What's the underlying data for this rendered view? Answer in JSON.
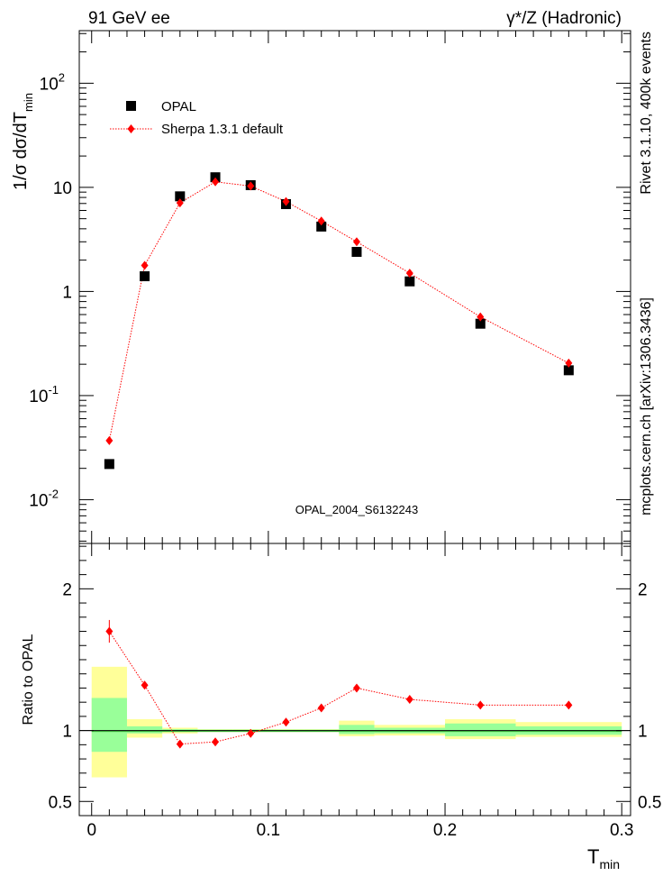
{
  "header": {
    "left": "91 GeV ee",
    "right": "γ*/Z (Hadronic)"
  },
  "side_labels": {
    "rivet": "Rivet 3.1.10,  400k events",
    "source": "mcplots.cern.ch [arXiv:1306.3436]"
  },
  "analysis_id": "OPAL_2004_S6132243",
  "colors": {
    "mc": "#ff0000",
    "data": "#000000",
    "band_inner": "#99ff99",
    "band_outer": "#ffff99",
    "ref_line": "#33aa33",
    "analysis_text": "#999999",
    "side_text": "#666666"
  },
  "chart_data": [
    {
      "type": "scatter",
      "title": "",
      "ylabel": "1/σ dσ/dT",
      "ylabel_sub": "min",
      "yscale": "log",
      "xlim": [
        -0.007,
        0.305
      ],
      "ylim": [
        0.0038,
        320
      ],
      "ytick_values": [
        0.01,
        0.1,
        1,
        10,
        100
      ],
      "ytick_mantissas": [
        "10",
        "10",
        "1",
        "10",
        "10"
      ],
      "ytick_exponents": [
        "-2",
        "-1",
        "",
        "",
        "2"
      ],
      "legend": {
        "position": "top-left",
        "entries": [
          "OPAL",
          "Sherpa 1.3.1 default"
        ]
      },
      "series": [
        {
          "name": "OPAL",
          "marker": "square",
          "x": [
            0.01,
            0.03,
            0.05,
            0.07,
            0.09,
            0.11,
            0.13,
            0.15,
            0.18,
            0.22,
            0.27
          ],
          "values": [
            0.022,
            1.4,
            8.2,
            12.5,
            10.5,
            6.9,
            4.2,
            2.4,
            1.25,
            0.49,
            0.175
          ]
        },
        {
          "name": "Sherpa 1.3.1 default",
          "marker": "diamond",
          "line": "dotted",
          "x": [
            0.01,
            0.03,
            0.05,
            0.07,
            0.09,
            0.11,
            0.13,
            0.15,
            0.18,
            0.22,
            0.27
          ],
          "values": [
            0.037,
            1.78,
            7.1,
            11.3,
            10.3,
            7.3,
            4.75,
            3.0,
            1.5,
            0.57,
            0.205
          ]
        }
      ]
    },
    {
      "type": "scatter",
      "ylabel": "Ratio to OPAL",
      "xlabel": "T",
      "xlabel_sub": "min",
      "xlim": [
        -0.007,
        0.305
      ],
      "ylim": [
        0.4,
        2.32
      ],
      "xtick_labels": [
        "0",
        "0.1",
        "0.2",
        "0.3"
      ],
      "xtick_values": [
        0,
        0.1,
        0.2,
        0.3
      ],
      "ytick_labels": [
        "0.5",
        "1",
        "2"
      ],
      "ytick_values": [
        0.5,
        1,
        2
      ],
      "reference": 1,
      "uncertainty_bands": {
        "x_edges": [
          [
            0.0,
            0.02
          ],
          [
            0.02,
            0.04
          ],
          [
            0.04,
            0.06
          ],
          [
            0.06,
            0.08
          ],
          [
            0.08,
            0.1
          ],
          [
            0.1,
            0.12
          ],
          [
            0.12,
            0.14
          ],
          [
            0.14,
            0.16
          ],
          [
            0.16,
            0.2
          ],
          [
            0.2,
            0.24
          ],
          [
            0.24,
            0.3
          ]
        ],
        "inner": [
          [
            0.85,
            1.23
          ],
          [
            0.98,
            1.03
          ],
          [
            0.99,
            1.01
          ],
          [
            0.993,
            1.007
          ],
          [
            0.993,
            1.007
          ],
          [
            0.993,
            1.007
          ],
          [
            0.993,
            1.007
          ],
          [
            0.975,
            1.04
          ],
          [
            0.98,
            1.02
          ],
          [
            0.96,
            1.05
          ],
          [
            0.97,
            1.03
          ]
        ],
        "outer": [
          [
            0.67,
            1.45
          ],
          [
            0.95,
            1.08
          ],
          [
            0.98,
            1.02
          ],
          [
            0.99,
            1.01
          ],
          [
            0.99,
            1.01
          ],
          [
            0.99,
            1.01
          ],
          [
            0.99,
            1.01
          ],
          [
            0.96,
            1.07
          ],
          [
            0.965,
            1.04
          ],
          [
            0.94,
            1.08
          ],
          [
            0.955,
            1.06
          ]
        ]
      },
      "series": [
        {
          "name": "Sherpa 1.3.1 default",
          "x": [
            0.01,
            0.03,
            0.05,
            0.07,
            0.09,
            0.11,
            0.13,
            0.15,
            0.18,
            0.22,
            0.27
          ],
          "values": [
            1.7,
            1.32,
            0.905,
            0.92,
            0.98,
            1.06,
            1.16,
            1.3,
            1.22,
            1.18,
            1.18
          ],
          "errors": [
            0.08,
            0.02,
            0.01,
            0.01,
            0.01,
            0.01,
            0.01,
            0.015,
            0.015,
            0.02,
            0.025
          ]
        }
      ]
    }
  ]
}
